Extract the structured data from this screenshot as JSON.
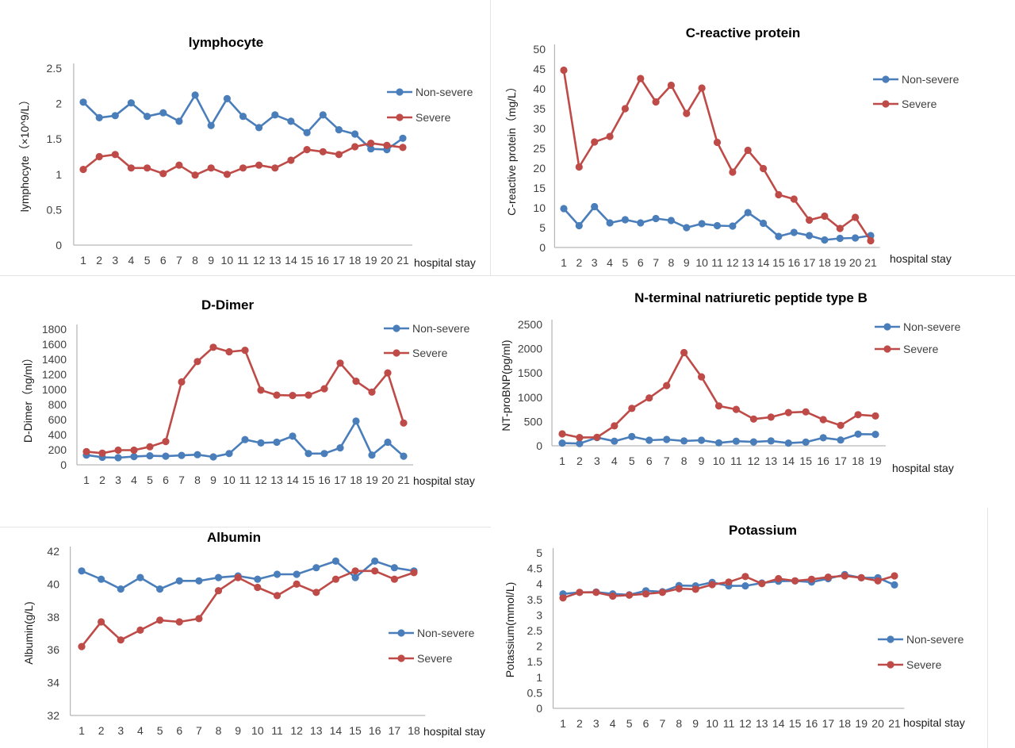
{
  "colors": {
    "non_severe": "#4a7ebb",
    "severe": "#be4b48",
    "axis": "#a6a6a6",
    "text": "#404040"
  },
  "chart_data": [
    {
      "type": "line",
      "title": "lymphocyte",
      "ylabel": "lymphocyte（×10^9/L）",
      "xlabel": "hospital stay",
      "x": [
        "1",
        "2",
        "3",
        "4",
        "5",
        "6",
        "7",
        "8",
        "9",
        "10",
        "11",
        "12",
        "13",
        "14",
        "15",
        "16",
        "17",
        "18",
        "19",
        "20",
        "21"
      ],
      "y_ticks": [
        "0",
        "0.5",
        "1",
        "1.5",
        "2",
        "2.5"
      ],
      "ylim": [
        0,
        2.5
      ],
      "grid": false,
      "legend_position": "right",
      "series": [
        {
          "name": "Non-severe",
          "values": [
            2.02,
            1.8,
            1.83,
            2.01,
            1.82,
            1.87,
            1.75,
            2.12,
            1.69,
            2.07,
            1.82,
            1.66,
            1.84,
            1.75,
            1.59,
            1.84,
            1.63,
            1.57,
            1.36,
            1.35,
            1.51
          ]
        },
        {
          "name": "Severe",
          "values": [
            1.07,
            1.25,
            1.28,
            1.09,
            1.09,
            1.01,
            1.13,
            0.99,
            1.09,
            1.0,
            1.09,
            1.13,
            1.09,
            1.2,
            1.35,
            1.32,
            1.28,
            1.39,
            1.44,
            1.41,
            1.38
          ]
        }
      ]
    },
    {
      "type": "line",
      "title": "C-reactive protein",
      "ylabel": "C-reactive protein（mg/L）",
      "xlabel": "hospital stay",
      "x": [
        "1",
        "2",
        "3",
        "4",
        "5",
        "6",
        "7",
        "8",
        "9",
        "10",
        "11",
        "12",
        "13",
        "14",
        "15",
        "16",
        "17",
        "18",
        "19",
        "20",
        "21"
      ],
      "y_ticks": [
        "0",
        "5",
        "10",
        "15",
        "20",
        "25",
        "30",
        "35",
        "40",
        "45",
        "50"
      ],
      "ylim": [
        0,
        50
      ],
      "grid": false,
      "legend_position": "right",
      "series": [
        {
          "name": "Non-severe",
          "values": [
            9.8,
            5.5,
            10.3,
            6.2,
            7.0,
            6.2,
            7.3,
            6.8,
            5.0,
            6.0,
            5.5,
            5.4,
            8.8,
            6.1,
            2.8,
            3.8,
            3.0,
            1.9,
            2.3,
            2.4,
            3.0
          ]
        },
        {
          "name": "Severe",
          "values": [
            44.7,
            20.3,
            26.6,
            28.0,
            35.0,
            42.6,
            36.7,
            40.9,
            33.8,
            40.2,
            26.5,
            19.0,
            24.5,
            19.9,
            13.3,
            12.2,
            6.9,
            7.9,
            4.8,
            7.6,
            1.7
          ]
        }
      ]
    },
    {
      "type": "line",
      "title": "D-Dimer",
      "ylabel": "D-Dimer（ng/ml）",
      "xlabel": "hospital stay",
      "x": [
        "1",
        "2",
        "3",
        "4",
        "5",
        "6",
        "7",
        "8",
        "9",
        "10",
        "11",
        "12",
        "13",
        "14",
        "15",
        "16",
        "17",
        "18",
        "19",
        "20",
        "21"
      ],
      "y_ticks": [
        "0",
        "200",
        "400",
        "600",
        "800",
        "1000",
        "1200",
        "1400",
        "1600",
        "1800"
      ],
      "ylim": [
        0,
        1800
      ],
      "grid": false,
      "legend_position": "right",
      "series": [
        {
          "name": "Non-severe",
          "values": [
            130,
            100,
            95,
            110,
            120,
            115,
            125,
            135,
            105,
            150,
            335,
            290,
            300,
            380,
            150,
            150,
            225,
            580,
            130,
            300,
            115
          ]
        },
        {
          "name": "Severe",
          "values": [
            175,
            155,
            195,
            195,
            240,
            310,
            1100,
            1370,
            1560,
            1500,
            1520,
            990,
            925,
            920,
            925,
            1010,
            1350,
            1110,
            965,
            1220,
            555
          ]
        }
      ]
    },
    {
      "type": "line",
      "title": "N-terminal natriuretic peptide type B",
      "ylabel": "NT-proBNP(pg/ml)",
      "xlabel": "hospital stay",
      "x": [
        "1",
        "2",
        "3",
        "4",
        "5",
        "6",
        "7",
        "8",
        "9",
        "10",
        "11",
        "12",
        "13",
        "14",
        "15",
        "16",
        "17",
        "18",
        "19"
      ],
      "y_ticks": [
        "0",
        "500",
        "1000",
        "1500",
        "2000",
        "2500"
      ],
      "ylim": [
        0,
        2500
      ],
      "grid": false,
      "legend_position": "right",
      "series": [
        {
          "name": "Non-severe",
          "values": [
            55,
            45,
            170,
            95,
            190,
            115,
            130,
            100,
            115,
            60,
            95,
            80,
            100,
            55,
            75,
            165,
            120,
            240,
            235
          ]
        },
        {
          "name": "Severe",
          "values": [
            245,
            170,
            175,
            410,
            770,
            985,
            1240,
            1920,
            1420,
            820,
            750,
            550,
            590,
            685,
            700,
            540,
            420,
            640,
            615
          ]
        }
      ]
    },
    {
      "type": "line",
      "title": "Albumin",
      "ylabel": "Albumin(g/L)",
      "xlabel": "hospital stay",
      "x": [
        "1",
        "2",
        "3",
        "4",
        "5",
        "6",
        "7",
        "8",
        "9",
        "10",
        "11",
        "12",
        "13",
        "14",
        "15",
        "16",
        "17",
        "18"
      ],
      "y_ticks": [
        "32",
        "34",
        "36",
        "38",
        "40",
        "42"
      ],
      "ylim": [
        32,
        42
      ],
      "grid": false,
      "legend_position": "right",
      "series": [
        {
          "name": "Non-severe",
          "values": [
            40.8,
            40.3,
            39.7,
            40.4,
            39.7,
            40.2,
            40.2,
            40.4,
            40.5,
            40.3,
            40.6,
            40.6,
            41.0,
            41.4,
            40.4,
            41.4,
            41.0,
            40.8
          ]
        },
        {
          "name": "Severe",
          "values": [
            36.2,
            37.7,
            36.6,
            37.2,
            37.8,
            37.7,
            37.9,
            39.6,
            40.4,
            39.8,
            39.3,
            40.0,
            39.5,
            40.3,
            40.8,
            40.8,
            40.3,
            40.7
          ]
        }
      ]
    },
    {
      "type": "line",
      "title": "Potassium",
      "ylabel": "Potassium(mmol/L)",
      "xlabel": "hospital stay",
      "x": [
        "1",
        "2",
        "3",
        "4",
        "5",
        "6",
        "7",
        "8",
        "9",
        "10",
        "11",
        "12",
        "13",
        "14",
        "15",
        "16",
        "17",
        "18",
        "19",
        "20",
        "21"
      ],
      "y_ticks": [
        "0",
        "0.5",
        "1",
        "1.5",
        "2",
        "2.5",
        "3",
        "3.5",
        "4",
        "4.5",
        "5"
      ],
      "ylim": [
        0,
        5
      ],
      "grid": false,
      "legend_position": "right",
      "series": [
        {
          "name": "Non-severe",
          "values": [
            3.68,
            3.73,
            3.74,
            3.68,
            3.65,
            3.78,
            3.75,
            3.95,
            3.94,
            4.05,
            3.94,
            3.94,
            4.03,
            4.09,
            4.1,
            4.06,
            4.17,
            4.3,
            4.2,
            4.2,
            3.97
          ]
        },
        {
          "name": "Severe",
          "values": [
            3.55,
            3.73,
            3.73,
            3.61,
            3.64,
            3.68,
            3.73,
            3.85,
            3.83,
            3.98,
            4.06,
            4.24,
            4.01,
            4.17,
            4.1,
            4.15,
            4.22,
            4.26,
            4.2,
            4.1,
            4.26
          ]
        }
      ]
    }
  ]
}
